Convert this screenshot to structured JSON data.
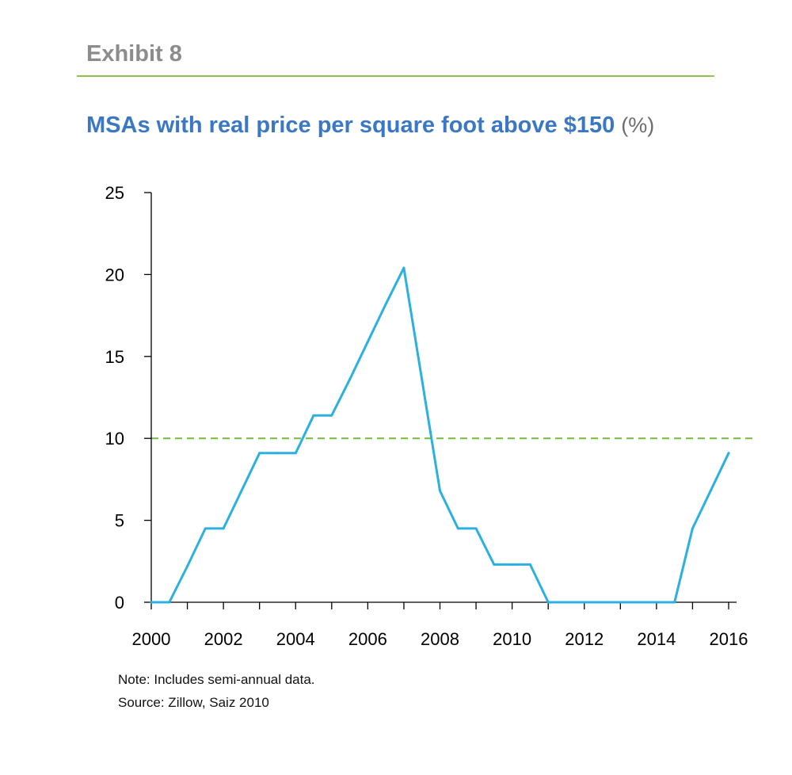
{
  "header": {
    "exhibit": "Exhibit 8",
    "title": "MSAs with real price per square foot above $150",
    "title_unit": "(%)"
  },
  "colors": {
    "exhibit": "#8c8c8c",
    "rule": "#8dc63f",
    "title": "#3a78c3",
    "series": "#2bb0e0",
    "reference_line": "#7ac143",
    "axis": "#000000"
  },
  "chart_data": {
    "type": "line",
    "title": "MSAs with real price per square foot above $150 (%)",
    "xlabel": "",
    "ylabel": "",
    "xlim": [
      2000,
      2016
    ],
    "ylim": [
      0,
      25
    ],
    "x_ticks": [
      "2000",
      "2002",
      "2004",
      "2006",
      "2008",
      "2010",
      "2012",
      "2014",
      "2016"
    ],
    "y_ticks": [
      "0",
      "5",
      "10",
      "15",
      "20",
      "25"
    ],
    "grid": false,
    "legend": "none",
    "series": [
      {
        "x": [
          2000,
          2000.5,
          2001,
          2001.5,
          2002,
          2002.5,
          2003,
          2003.5,
          2004,
          2004.5,
          2005,
          2005.5,
          2006,
          2006.5,
          2007,
          2007.5,
          2008,
          2008.5,
          2009,
          2009.5,
          2010,
          2010.5,
          2011,
          2011.5,
          2012,
          2012.5,
          2013,
          2013.5,
          2014,
          2014.5,
          2015,
          2015.5,
          2016
        ],
        "y": [
          0,
          0,
          2.2,
          4.5,
          4.5,
          6.8,
          9.1,
          9.1,
          9.1,
          11.4,
          11.4,
          13.6,
          15.9,
          18.2,
          20.4,
          13.6,
          6.8,
          4.5,
          4.5,
          2.3,
          2.3,
          2.3,
          0,
          0,
          0,
          0,
          0,
          0,
          0,
          0,
          4.5,
          6.8,
          9.1
        ]
      }
    ],
    "reference_lines": [
      {
        "y": 10,
        "style": "dashed"
      }
    ]
  },
  "footer": {
    "note": "Note: Includes semi-annual data.",
    "source": "Source: Zillow, Saiz 2010"
  }
}
